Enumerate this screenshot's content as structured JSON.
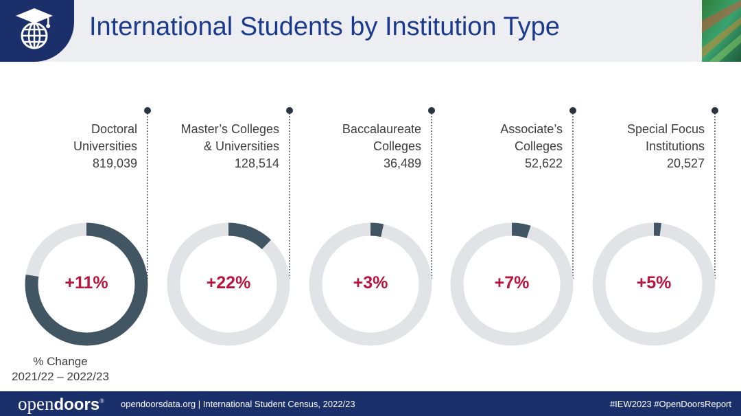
{
  "header": {
    "title": "International Students by Institution Type",
    "colors": {
      "banner": "#eceef1",
      "logo_block": "#1b2f6b",
      "title": "#1c3a8d"
    },
    "logo_icon": "graduation-globe-icon"
  },
  "chart_data": {
    "type": "donut",
    "categories": [
      "Doctoral Universities",
      "Master's Colleges & Universities",
      "Baccalaureate Colleges",
      "Associate's Colleges",
      "Special Focus Institutions"
    ],
    "items": [
      {
        "lines": [
          "Doctoral",
          "Universities"
        ],
        "count": 819039,
        "count_label": "819,039",
        "change": "+11%"
      },
      {
        "lines": [
          "Master’s Colleges",
          "& Universities"
        ],
        "count": 128514,
        "count_label": "128,514",
        "change": "+22%"
      },
      {
        "lines": [
          "Baccalaureate",
          "Colleges"
        ],
        "count": 36489,
        "count_label": "36,489",
        "change": "+3%"
      },
      {
        "lines": [
          "Associate’s",
          "Colleges"
        ],
        "count": 52622,
        "count_label": "52,622",
        "change": "+7%"
      },
      {
        "lines": [
          "Special Focus",
          "Institutions"
        ],
        "count": 20527,
        "count_label": "20,527",
        "change": "+5%"
      }
    ],
    "change_caption": [
      "% Change",
      "2021/22 – 2022/23"
    ],
    "colors": {
      "filled": "#425563",
      "track": "#e1e3e6",
      "change_text": "#b8143c",
      "leader": "#2a3340"
    }
  },
  "footer": {
    "brand_regular": "open",
    "brand_bold": "doors",
    "brand_mark": "®",
    "source": "opendoorsdata.org  |  International Student Census, 2022/23",
    "hashtags": "#IEW2023  #OpenDoorsReport",
    "color": "#1b2f6b"
  }
}
